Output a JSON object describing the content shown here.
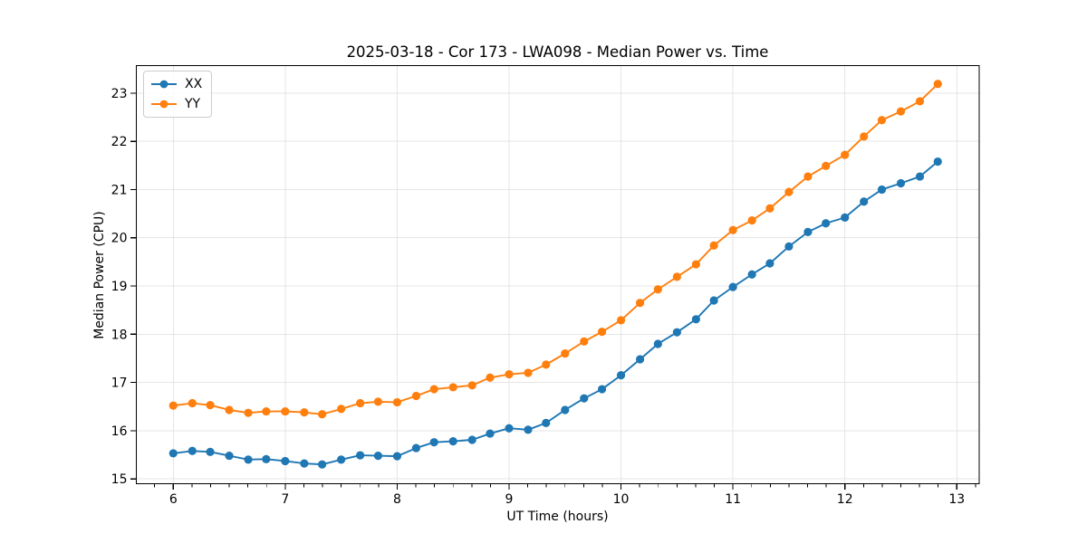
{
  "chart_data": {
    "type": "line",
    "title": "2025-03-18 - Cor 173 - LWA098 - Median Power vs. Time",
    "xlabel": "UT Time (hours)",
    "ylabel": "Median Power (CPU)",
    "xlim": [
      5.67,
      13.2
    ],
    "ylim": [
      14.9,
      23.57
    ],
    "xticks": [
      6,
      7,
      8,
      9,
      10,
      11,
      12,
      13
    ],
    "yticks": [
      15,
      16,
      17,
      18,
      19,
      20,
      21,
      22,
      23
    ],
    "x_minor_divisions": 6,
    "grid": true,
    "grid_color": "#e5e5e5",
    "legend_position": "upper left",
    "x": [
      6.0,
      6.17,
      6.33,
      6.5,
      6.67,
      6.83,
      7.0,
      7.17,
      7.33,
      7.5,
      7.67,
      7.83,
      8.0,
      8.17,
      8.33,
      8.5,
      8.67,
      8.83,
      9.0,
      9.17,
      9.33,
      9.5,
      9.67,
      9.83,
      10.0,
      10.17,
      10.33,
      10.5,
      10.67,
      10.83,
      11.0,
      11.17,
      11.33,
      11.5,
      11.67,
      11.83,
      12.0,
      12.17,
      12.33,
      12.5,
      12.67,
      12.83
    ],
    "series": [
      {
        "name": "XX",
        "color": "#1f77b4",
        "values": [
          15.53,
          15.58,
          15.56,
          15.48,
          15.4,
          15.41,
          15.37,
          15.32,
          15.3,
          15.4,
          15.49,
          15.48,
          15.47,
          15.64,
          15.76,
          15.78,
          15.81,
          15.94,
          16.05,
          16.02,
          16.16,
          16.43,
          16.67,
          16.86,
          17.15,
          17.48,
          17.8,
          18.04,
          18.31,
          18.7,
          18.98,
          19.24,
          19.47,
          19.82,
          20.12,
          20.3,
          20.42,
          20.75,
          21.0,
          21.13,
          21.27,
          21.58
        ]
      },
      {
        "name": "YY",
        "color": "#ff7f0e",
        "values": [
          16.52,
          16.57,
          16.53,
          16.43,
          16.37,
          16.4,
          16.4,
          16.38,
          16.34,
          16.45,
          16.57,
          16.6,
          16.59,
          16.72,
          16.86,
          16.9,
          16.94,
          17.1,
          17.17,
          17.2,
          17.37,
          17.6,
          17.85,
          18.05,
          18.29,
          18.65,
          18.93,
          19.19,
          19.45,
          19.84,
          20.16,
          20.36,
          20.61,
          20.95,
          21.27,
          21.49,
          21.72,
          22.1,
          22.44,
          22.62,
          22.83,
          23.19
        ]
      }
    ]
  }
}
